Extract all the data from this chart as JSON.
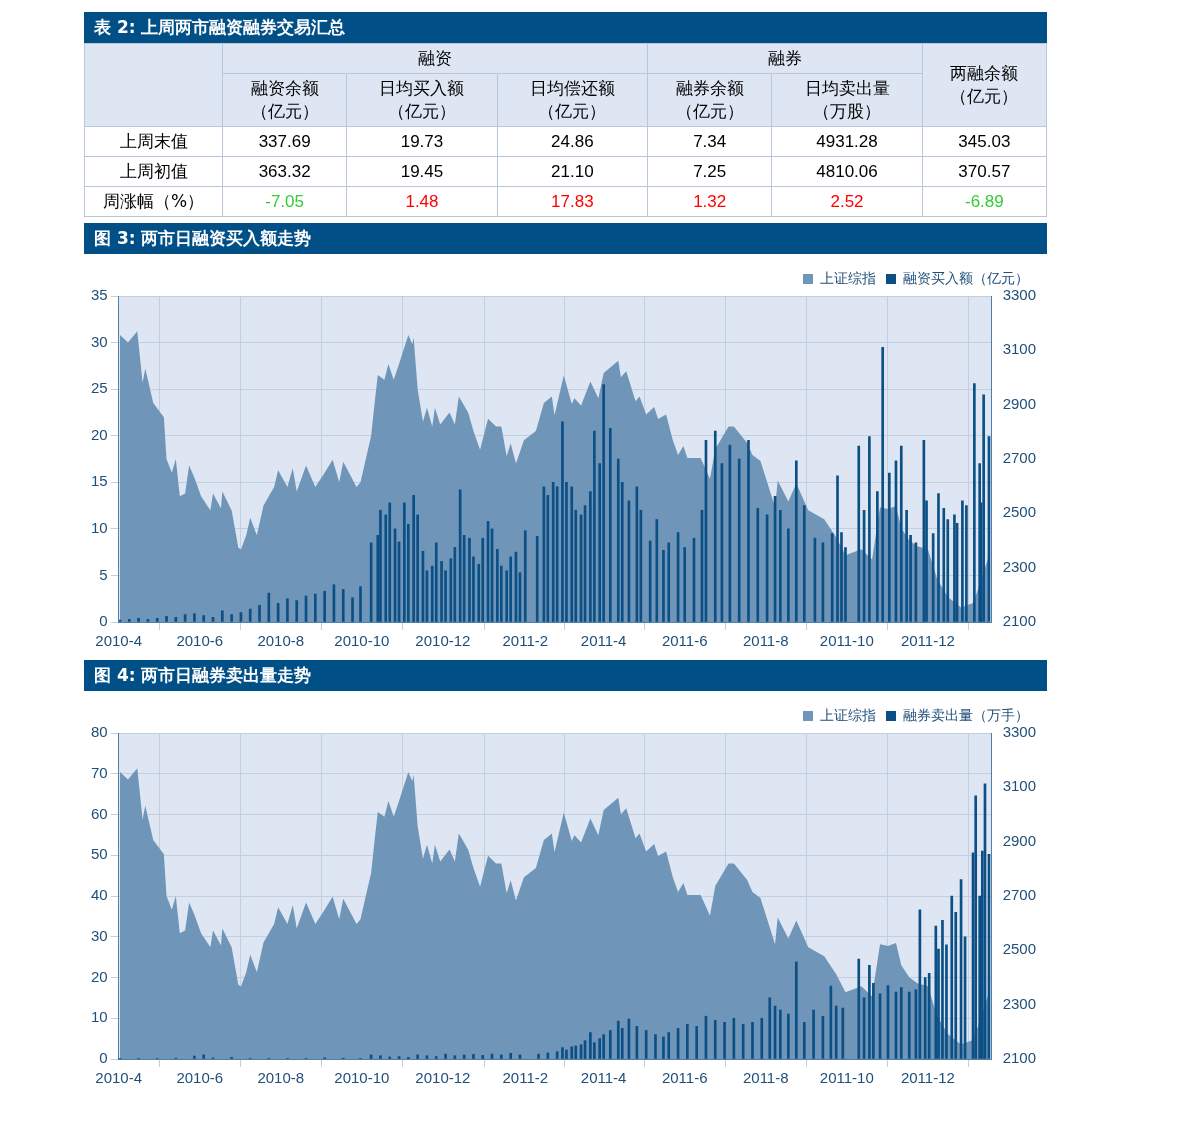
{
  "chart_data": [
    {
      "type": "other",
      "title": "表 2: 上周两市融资融券交易汇总",
      "categories": [
        "上周末值",
        "上周初值",
        "周涨幅（%）"
      ],
      "annotations": [
        "融资",
        "融券"
      ],
      "data_labels": true,
      "series": [
        {
          "name": "融资余额（亿元）",
          "values": [
            337.69,
            363.32,
            -7.05
          ],
          "colors": [
            "#000000",
            "#000000",
            "#33cc33"
          ]
        },
        {
          "name": "日均买入额（亿元）",
          "values": [
            19.73,
            19.45,
            1.48
          ],
          "colors": [
            "#000000",
            "#000000",
            "#ff0000"
          ]
        },
        {
          "name": "日均偿还额（亿元）",
          "values": [
            24.86,
            21.1,
            17.83
          ],
          "value_labels": [
            "24.86",
            "21.10",
            "17.83"
          ],
          "colors": [
            "#000000",
            "#000000",
            "#ff0000"
          ]
        },
        {
          "name": "融券余额（亿元）",
          "values": [
            7.34,
            7.25,
            1.32
          ],
          "colors": [
            "#000000",
            "#000000",
            "#ff0000"
          ]
        },
        {
          "name": "日均卖出量（万股）",
          "values": [
            4931.28,
            4810.06,
            2.52
          ],
          "colors": [
            "#000000",
            "#000000",
            "#ff0000"
          ]
        },
        {
          "name": "两融余额（亿元）",
          "values": [
            345.03,
            370.57,
            -6.89
          ],
          "colors": [
            "#000000",
            "#000000",
            "#33cc33"
          ]
        }
      ]
    },
    {
      "type": "bar",
      "title": "图 3: 两市日融资买入额走势",
      "xlim": [
        "2010-04-01",
        "2012-01-18"
      ],
      "xticks": [
        {
          "value": "2010-04",
          "label": "2010-4"
        },
        {
          "value": "2010-06",
          "label": "2010-6"
        },
        {
          "value": "2010-08",
          "label": "2010-8"
        },
        {
          "value": "2010-10",
          "label": "2010-10"
        },
        {
          "value": "2010-12",
          "label": "2010-12"
        },
        {
          "value": "2011-02",
          "label": "2011-2"
        },
        {
          "value": "2011-04",
          "label": "2011-4"
        },
        {
          "value": "2011-06",
          "label": "2011-6"
        },
        {
          "value": "2011-08",
          "label": "2011-8"
        },
        {
          "value": "2011-10",
          "label": "2011-10"
        },
        {
          "value": "2011-12",
          "label": "2011-12"
        }
      ],
      "ylim": [
        0,
        35
      ],
      "yticks": [
        0,
        5,
        10,
        15,
        20,
        25,
        30,
        35
      ],
      "y2lim": [
        2100,
        3300
      ],
      "y2ticks": [
        2100,
        2300,
        2500,
        2700,
        2900,
        3100,
        3300
      ],
      "grid": true,
      "legend": "top right",
      "series": [
        {
          "name": "上证综指",
          "type": "area",
          "axis": "y2",
          "color": "#6f95b8",
          "x": [
            "2010-04-02",
            "2010-04-08",
            "2010-04-15",
            "2010-04-19",
            "2010-04-21",
            "2010-04-27",
            "2010-05-05",
            "2010-05-07",
            "2010-05-11",
            "2010-05-14",
            "2010-05-17",
            "2010-05-21",
            "2010-05-24",
            "2010-05-28",
            "2010-06-02",
            "2010-06-09",
            "2010-06-11",
            "2010-06-17",
            "2010-06-18",
            "2010-06-25",
            "2010-06-30",
            "2010-07-02",
            "2010-07-06",
            "2010-07-09",
            "2010-07-14",
            "2010-07-19",
            "2010-07-27",
            "2010-07-30",
            "2010-08-06",
            "2010-08-10",
            "2010-08-13",
            "2010-08-20",
            "2010-08-27",
            "2010-09-03",
            "2010-09-09",
            "2010-09-14",
            "2010-09-17",
            "2010-09-27",
            "2010-09-30",
            "2010-10-08",
            "2010-10-11",
            "2010-10-13",
            "2010-10-18",
            "2010-10-21",
            "2010-10-25",
            "2010-10-29",
            "2010-11-05",
            "2010-11-08",
            "2010-11-09",
            "2010-11-12",
            "2010-11-16",
            "2010-11-19",
            "2010-11-23",
            "2010-11-25",
            "2010-11-29",
            "2010-12-06",
            "2010-12-10",
            "2010-12-13",
            "2010-12-20",
            "2010-12-24",
            "2010-12-29",
            "2011-01-04",
            "2011-01-10",
            "2011-01-14",
            "2011-01-18",
            "2011-01-21",
            "2011-01-25",
            "2011-01-31",
            "2011-02-09",
            "2011-02-15",
            "2011-02-21",
            "2011-02-23",
            "2011-03-02",
            "2011-03-08",
            "2011-03-10",
            "2011-03-15",
            "2011-03-22",
            "2011-03-28",
            "2011-04-01",
            "2011-04-12",
            "2011-04-14",
            "2011-04-18",
            "2011-04-25",
            "2011-04-28",
            "2011-05-03",
            "2011-05-09",
            "2011-05-12",
            "2011-05-18",
            "2011-05-23",
            "2011-05-27",
            "2011-05-31",
            "2011-06-03",
            "2011-06-13",
            "2011-06-20",
            "2011-06-24",
            "2011-07-04",
            "2011-07-08",
            "2011-07-18",
            "2011-07-22",
            "2011-07-28",
            "2011-08-08",
            "2011-08-10",
            "2011-08-18",
            "2011-08-24",
            "2011-09-02",
            "2011-09-14",
            "2011-09-23",
            "2011-09-30",
            "2011-10-12",
            "2011-10-20",
            "2011-10-26",
            "2011-11-01",
            "2011-11-07",
            "2011-11-11",
            "2011-11-17",
            "2011-11-23",
            "2011-12-01",
            "2011-12-08",
            "2011-12-16",
            "2011-12-26",
            "2012-01-04",
            "2012-01-09",
            "2012-01-16"
          ],
          "values": [
            3156,
            3129,
            3170,
            2981,
            3033,
            2906,
            2854,
            2700,
            2649,
            2700,
            2563,
            2573,
            2676,
            2631,
            2563,
            2511,
            2573,
            2518,
            2580,
            2511,
            2374,
            2367,
            2419,
            2484,
            2419,
            2529,
            2597,
            2659,
            2597,
            2666,
            2580,
            2676,
            2597,
            2649,
            2697,
            2614,
            2690,
            2597,
            2614,
            2786,
            2923,
            3009,
            2992,
            3050,
            2992,
            3050,
            3156,
            3122,
            3146,
            2957,
            2837,
            2889,
            2820,
            2889,
            2827,
            2871,
            2827,
            2930,
            2871,
            2803,
            2734,
            2848,
            2820,
            2820,
            2710,
            2758,
            2683,
            2769,
            2803,
            2906,
            2930,
            2861,
            3007,
            2902,
            2924,
            2897,
            2985,
            2924,
            3017,
            3062,
            3001,
            3023,
            2913,
            2930,
            2864,
            2891,
            2847,
            2864,
            2770,
            2715,
            2748,
            2704,
            2704,
            2627,
            2737,
            2820,
            2820,
            2759,
            2715,
            2693,
            2522,
            2621,
            2544,
            2610,
            2511,
            2478,
            2412,
            2346,
            2368,
            2330,
            2522,
            2516,
            2527,
            2445,
            2401,
            2379,
            2368,
            2258,
            2192,
            2153,
            2170,
            2236,
            2346
          ]
        },
        {
          "name": "融资买入额（亿元）",
          "type": "bar",
          "color": "#0b4f85",
          "x": [
            "2010-04-02",
            "2010-04-09",
            "2010-04-16",
            "2010-04-23",
            "2010-04-30",
            "2010-05-07",
            "2010-05-14",
            "2010-05-21",
            "2010-05-28",
            "2010-06-04",
            "2010-06-11",
            "2010-06-18",
            "2010-06-25",
            "2010-07-02",
            "2010-07-09",
            "2010-07-16",
            "2010-07-23",
            "2010-07-30",
            "2010-08-06",
            "2010-08-13",
            "2010-08-20",
            "2010-08-27",
            "2010-09-03",
            "2010-09-10",
            "2010-09-17",
            "2010-09-24",
            "2010-09-30",
            "2010-10-08",
            "2010-10-13",
            "2010-10-15",
            "2010-10-19",
            "2010-10-22",
            "2010-10-26",
            "2010-10-29",
            "2010-11-02",
            "2010-11-05",
            "2010-11-09",
            "2010-11-12",
            "2010-11-16",
            "2010-11-19",
            "2010-11-23",
            "2010-11-26",
            "2010-11-30",
            "2010-12-03",
            "2010-12-07",
            "2010-12-10",
            "2010-12-14",
            "2010-12-17",
            "2010-12-21",
            "2010-12-24",
            "2010-12-28",
            "2010-12-31",
            "2011-01-04",
            "2011-01-07",
            "2011-01-11",
            "2011-01-14",
            "2011-01-18",
            "2011-01-21",
            "2011-01-25",
            "2011-01-28",
            "2011-02-01",
            "2011-02-10",
            "2011-02-15",
            "2011-02-18",
            "2011-02-22",
            "2011-02-25",
            "2011-03-01",
            "2011-03-04",
            "2011-03-08",
            "2011-03-11",
            "2011-03-15",
            "2011-03-18",
            "2011-03-22",
            "2011-03-25",
            "2011-03-29",
            "2011-04-01",
            "2011-04-06",
            "2011-04-12",
            "2011-04-15",
            "2011-04-20",
            "2011-04-26",
            "2011-04-29",
            "2011-05-06",
            "2011-05-11",
            "2011-05-16",
            "2011-05-20",
            "2011-05-27",
            "2011-06-01",
            "2011-06-08",
            "2011-06-14",
            "2011-06-17",
            "2011-06-24",
            "2011-06-29",
            "2011-07-05",
            "2011-07-12",
            "2011-07-19",
            "2011-07-26",
            "2011-08-02",
            "2011-08-08",
            "2011-08-12",
            "2011-08-18",
            "2011-08-24",
            "2011-08-30",
            "2011-09-07",
            "2011-09-13",
            "2011-09-20",
            "2011-09-24",
            "2011-09-27",
            "2011-09-30",
            "2011-10-10",
            "2011-10-14",
            "2011-10-18",
            "2011-10-24",
            "2011-10-28",
            "2011-11-02",
            "2011-11-07",
            "2011-11-11",
            "2011-11-15",
            "2011-11-18",
            "2011-11-22",
            "2011-11-28",
            "2011-11-30",
            "2011-12-05",
            "2011-12-09",
            "2011-12-13",
            "2011-12-16",
            "2011-12-21",
            "2011-12-23",
            "2011-12-27",
            "2011-12-30",
            "2012-01-05",
            "2012-01-09",
            "2012-01-10",
            "2012-01-12",
            "2012-01-16"
          ],
          "values": [
            0.2,
            0.3,
            0.4,
            0.3,
            0.4,
            0.6,
            0.5,
            0.8,
            0.9,
            0.7,
            0.5,
            1.2,
            0.8,
            1.0,
            1.4,
            1.8,
            3.1,
            2.0,
            2.5,
            2.3,
            2.8,
            3.0,
            3.3,
            4.0,
            3.5,
            2.6,
            3.8,
            8.5,
            9.3,
            12.0,
            11.5,
            12.8,
            10.0,
            8.6,
            12.8,
            10.5,
            13.6,
            11.5,
            7.6,
            5.5,
            6.0,
            8.5,
            6.5,
            5.5,
            6.8,
            8.0,
            14.2,
            9.3,
            9.0,
            7.0,
            6.2,
            9.0,
            10.8,
            10.0,
            7.8,
            6.0,
            5.5,
            7.0,
            7.5,
            5.3,
            9.8,
            9.2,
            14.5,
            13.6,
            15.0,
            14.5,
            21.5,
            15.0,
            14.5,
            12.0,
            11.5,
            12.5,
            14.0,
            20.5,
            17.0,
            25.5,
            20.8,
            17.5,
            15.0,
            13.0,
            14.5,
            12.0,
            8.7,
            11.0,
            7.7,
            8.5,
            9.6,
            8.0,
            9.0,
            12.0,
            19.5,
            20.5,
            17.0,
            19.0,
            17.5,
            19.5,
            12.2,
            11.5,
            13.5,
            12.0,
            10.0,
            17.3,
            12.5,
            9.0,
            8.5,
            9.5,
            15.7,
            9.6,
            8.0,
            18.9,
            12.0,
            19.9,
            14.0,
            29.5,
            16.0,
            17.3,
            18.9,
            12.0,
            9.3,
            8.5,
            19.5,
            13.0,
            9.5,
            13.8,
            12.2,
            11.0,
            11.5,
            10.6,
            13.0,
            12.5,
            25.6,
            17.0,
            12.8,
            24.4,
            19.9
          ]
        }
      ]
    },
    {
      "type": "bar",
      "title": "图 4: 两市日融券卖出量走势",
      "xlim": [
        "2010-04-01",
        "2012-01-18"
      ],
      "xticks": [
        {
          "value": "2010-04",
          "label": "2010-4"
        },
        {
          "value": "2010-06",
          "label": "2010-6"
        },
        {
          "value": "2010-08",
          "label": "2010-8"
        },
        {
          "value": "2010-10",
          "label": "2010-10"
        },
        {
          "value": "2010-12",
          "label": "2010-12"
        },
        {
          "value": "2011-02",
          "label": "2011-2"
        },
        {
          "value": "2011-04",
          "label": "2011-4"
        },
        {
          "value": "2011-06",
          "label": "2011-6"
        },
        {
          "value": "2011-08",
          "label": "2011-8"
        },
        {
          "value": "2011-10",
          "label": "2011-10"
        },
        {
          "value": "2011-12",
          "label": "2011-12"
        }
      ],
      "ylim": [
        0,
        80
      ],
      "yticks": [
        0,
        10,
        20,
        30,
        40,
        50,
        60,
        70,
        80
      ],
      "y2lim": [
        2100,
        3300
      ],
      "y2ticks": [
        2100,
        2300,
        2500,
        2700,
        2900,
        3100,
        3300
      ],
      "grid": true,
      "legend": "top right",
      "series": [
        {
          "name": "上证综指",
          "type": "area",
          "axis": "y2",
          "color": "#6f95b8",
          "x": [
            "2010-04-02",
            "2010-04-08",
            "2010-04-15",
            "2010-04-19",
            "2010-04-21",
            "2010-04-27",
            "2010-05-05",
            "2010-05-07",
            "2010-05-11",
            "2010-05-14",
            "2010-05-17",
            "2010-05-21",
            "2010-05-24",
            "2010-05-28",
            "2010-06-02",
            "2010-06-09",
            "2010-06-11",
            "2010-06-17",
            "2010-06-18",
            "2010-06-25",
            "2010-06-30",
            "2010-07-02",
            "2010-07-06",
            "2010-07-09",
            "2010-07-14",
            "2010-07-19",
            "2010-07-27",
            "2010-07-30",
            "2010-08-06",
            "2010-08-10",
            "2010-08-13",
            "2010-08-20",
            "2010-08-27",
            "2010-09-03",
            "2010-09-09",
            "2010-09-14",
            "2010-09-17",
            "2010-09-27",
            "2010-09-30",
            "2010-10-08",
            "2010-10-11",
            "2010-10-13",
            "2010-10-18",
            "2010-10-21",
            "2010-10-25",
            "2010-10-29",
            "2010-11-05",
            "2010-11-08",
            "2010-11-09",
            "2010-11-12",
            "2010-11-16",
            "2010-11-19",
            "2010-11-23",
            "2010-11-25",
            "2010-11-29",
            "2010-12-06",
            "2010-12-10",
            "2010-12-13",
            "2010-12-20",
            "2010-12-24",
            "2010-12-29",
            "2011-01-04",
            "2011-01-10",
            "2011-01-14",
            "2011-01-18",
            "2011-01-21",
            "2011-01-25",
            "2011-01-31",
            "2011-02-09",
            "2011-02-15",
            "2011-02-21",
            "2011-02-23",
            "2011-03-02",
            "2011-03-08",
            "2011-03-10",
            "2011-03-15",
            "2011-03-22",
            "2011-03-28",
            "2011-04-01",
            "2011-04-12",
            "2011-04-14",
            "2011-04-18",
            "2011-04-25",
            "2011-04-28",
            "2011-05-03",
            "2011-05-09",
            "2011-05-12",
            "2011-05-18",
            "2011-05-23",
            "2011-05-27",
            "2011-05-31",
            "2011-06-03",
            "2011-06-13",
            "2011-06-20",
            "2011-06-24",
            "2011-07-04",
            "2011-07-08",
            "2011-07-18",
            "2011-07-22",
            "2011-07-28",
            "2011-08-08",
            "2011-08-10",
            "2011-08-18",
            "2011-08-24",
            "2011-09-02",
            "2011-09-14",
            "2011-09-23",
            "2011-09-30",
            "2011-10-12",
            "2011-10-20",
            "2011-10-26",
            "2011-11-01",
            "2011-11-07",
            "2011-11-11",
            "2011-11-17",
            "2011-11-23",
            "2011-12-01",
            "2011-12-08",
            "2011-12-16",
            "2011-12-26",
            "2012-01-04",
            "2012-01-09",
            "2012-01-16"
          ],
          "values": [
            3156,
            3129,
            3170,
            2981,
            3033,
            2906,
            2854,
            2700,
            2649,
            2700,
            2563,
            2573,
            2676,
            2631,
            2563,
            2511,
            2573,
            2518,
            2580,
            2511,
            2374,
            2367,
            2419,
            2484,
            2419,
            2529,
            2597,
            2659,
            2597,
            2666,
            2580,
            2676,
            2597,
            2649,
            2697,
            2614,
            2690,
            2597,
            2614,
            2786,
            2923,
            3009,
            2992,
            3050,
            2992,
            3050,
            3156,
            3122,
            3146,
            2957,
            2837,
            2889,
            2820,
            2889,
            2827,
            2871,
            2827,
            2930,
            2871,
            2803,
            2734,
            2848,
            2820,
            2820,
            2710,
            2758,
            2683,
            2769,
            2803,
            2906,
            2930,
            2861,
            3007,
            2902,
            2924,
            2897,
            2985,
            2924,
            3017,
            3062,
            3001,
            3023,
            2913,
            2930,
            2864,
            2891,
            2847,
            2864,
            2770,
            2715,
            2748,
            2704,
            2704,
            2627,
            2737,
            2820,
            2820,
            2759,
            2715,
            2693,
            2522,
            2621,
            2544,
            2610,
            2511,
            2478,
            2412,
            2346,
            2368,
            2330,
            2522,
            2516,
            2527,
            2445,
            2401,
            2379,
            2368,
            2258,
            2192,
            2153,
            2170,
            2236,
            2346
          ]
        },
        {
          "name": "融券卖出量（万手）",
          "type": "bar",
          "color": "#0b4f85",
          "x": [
            "2010-04-02",
            "2010-04-16",
            "2010-04-30",
            "2010-05-14",
            "2010-05-28",
            "2010-06-04",
            "2010-06-11",
            "2010-06-25",
            "2010-07-09",
            "2010-07-23",
            "2010-08-06",
            "2010-08-20",
            "2010-09-03",
            "2010-09-17",
            "2010-09-30",
            "2010-10-08",
            "2010-10-15",
            "2010-10-22",
            "2010-10-29",
            "2010-11-05",
            "2010-11-12",
            "2010-11-19",
            "2010-11-26",
            "2010-12-03",
            "2010-12-10",
            "2010-12-17",
            "2010-12-24",
            "2010-12-31",
            "2011-01-07",
            "2011-01-14",
            "2011-01-21",
            "2011-01-28",
            "2011-02-11",
            "2011-02-18",
            "2011-02-25",
            "2011-03-01",
            "2011-03-04",
            "2011-03-08",
            "2011-03-11",
            "2011-03-15",
            "2011-03-18",
            "2011-03-22",
            "2011-03-25",
            "2011-03-29",
            "2011-04-01",
            "2011-04-06",
            "2011-04-12",
            "2011-04-15",
            "2011-04-20",
            "2011-04-26",
            "2011-05-03",
            "2011-05-10",
            "2011-05-16",
            "2011-05-20",
            "2011-05-27",
            "2011-06-03",
            "2011-06-10",
            "2011-06-17",
            "2011-06-24",
            "2011-07-01",
            "2011-07-08",
            "2011-07-15",
            "2011-07-22",
            "2011-07-29",
            "2011-08-04",
            "2011-08-08",
            "2011-08-12",
            "2011-08-18",
            "2011-08-24",
            "2011-08-30",
            "2011-09-06",
            "2011-09-13",
            "2011-09-19",
            "2011-09-23",
            "2011-09-28",
            "2011-10-10",
            "2011-10-14",
            "2011-10-18",
            "2011-10-21",
            "2011-10-26",
            "2011-11-01",
            "2011-11-07",
            "2011-11-11",
            "2011-11-17",
            "2011-11-22",
            "2011-11-25",
            "2011-11-29",
            "2011-12-02",
            "2011-12-07",
            "2011-12-09",
            "2011-12-12",
            "2011-12-15",
            "2011-12-19",
            "2011-12-22",
            "2011-12-26",
            "2011-12-29",
            "2012-01-04",
            "2012-01-06",
            "2012-01-09",
            "2012-01-11",
            "2012-01-13",
            "2012-01-16"
          ],
          "values": [
            0.1,
            0.1,
            0.1,
            0.2,
            0.7,
            1.0,
            0.3,
            0.4,
            0.1,
            0.1,
            0.1,
            0.1,
            0.3,
            0.2,
            0.1,
            1.0,
            0.8,
            0.5,
            0.6,
            0.4,
            1.0,
            0.8,
            0.6,
            1.2,
            0.8,
            1.0,
            1.1,
            0.9,
            1.2,
            1.0,
            1.4,
            1.0,
            1.2,
            1.5,
            1.8,
            2.8,
            2.2,
            3.0,
            3.2,
            3.5,
            4.5,
            6.5,
            4.0,
            5.0,
            6.0,
            7.0,
            9.3,
            7.5,
            9.8,
            8.0,
            7.0,
            6.0,
            5.4,
            6.5,
            7.5,
            8.5,
            8.0,
            10.5,
            9.5,
            9.0,
            10.0,
            8.5,
            9.0,
            10.0,
            15.0,
            13.0,
            12.0,
            11.0,
            23.8,
            9.0,
            12.0,
            10.5,
            17.9,
            13.0,
            12.5,
            24.5,
            15.0,
            23.0,
            18.6,
            16.0,
            18.0,
            16.4,
            17.5,
            16.4,
            17.0,
            36.6,
            20.0,
            21.0,
            32.6,
            27.0,
            34.0,
            28.0,
            40.0,
            36.0,
            44.0,
            30.0,
            50.6,
            64.6,
            40.0,
            51.0,
            67.5,
            50.2
          ]
        }
      ]
    }
  ]
}
